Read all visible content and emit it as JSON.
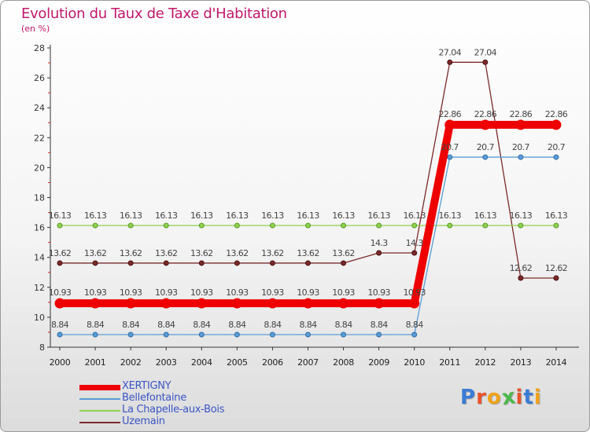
{
  "chart_data": {
    "type": "line",
    "title": "Evolution du Taux de Taxe d'Habitation",
    "subtitle": "(en %)",
    "x": [
      "2000",
      "2001",
      "2002",
      "2003",
      "2004",
      "2005",
      "2006",
      "2007",
      "2008",
      "2009",
      "2010",
      "2011",
      "2012",
      "2013",
      "2014"
    ],
    "ylim": [
      8,
      28
    ],
    "yticks": [
      8,
      10,
      12,
      14,
      16,
      18,
      20,
      22,
      24,
      26,
      28
    ],
    "grid": false,
    "legend_position": "bottom-left",
    "series": [
      {
        "name": "XERTIGNY",
        "color": "#ee0000",
        "values": [
          10.93,
          10.93,
          10.93,
          10.93,
          10.93,
          10.93,
          10.93,
          10.93,
          10.93,
          10.93,
          10.93,
          22.86,
          22.86,
          22.86,
          22.86
        ],
        "labels": [
          "10.93",
          "10.93",
          "10.93",
          "10.93",
          "10.93",
          "10.93",
          "10.93",
          "10.93",
          "10.93",
          "10.93",
          "10.93",
          "22.86",
          "22.86",
          "22.86",
          "22.86"
        ]
      },
      {
        "name": "Bellefontaine",
        "color": "#5b9bd5",
        "values": [
          8.84,
          8.84,
          8.84,
          8.84,
          8.84,
          8.84,
          8.84,
          8.84,
          8.84,
          8.84,
          8.84,
          20.7,
          20.7,
          20.7,
          20.7
        ],
        "labels": [
          "8.84",
          "8.84",
          "8.84",
          "8.84",
          "8.84",
          "8.84",
          "8.84",
          "8.84",
          "8.84",
          "8.84",
          "8.84",
          "20.7",
          "20.7",
          "20.7",
          "20.7"
        ]
      },
      {
        "name": "La Chapelle-aux-Bois",
        "color": "#8fd14f",
        "values": [
          16.13,
          16.13,
          16.13,
          16.13,
          16.13,
          16.13,
          16.13,
          16.13,
          16.13,
          16.13,
          16.13,
          16.13,
          16.13,
          16.13,
          16.13
        ],
        "labels": [
          "16.13",
          "16.13",
          "16.13",
          "16.13",
          "16.13",
          "16.13",
          "16.13",
          "16.13",
          "16.13",
          "16.13",
          "16.13",
          "16.13",
          "16.13",
          "16.13",
          "16.13"
        ]
      },
      {
        "name": "Uzemain",
        "color": "#7a2a2a",
        "values": [
          13.62,
          13.62,
          13.62,
          13.62,
          13.62,
          13.62,
          13.62,
          13.62,
          13.62,
          14.3,
          14.3,
          27.04,
          27.04,
          12.62,
          12.62
        ],
        "labels": [
          "13.62",
          "13.62",
          "13.62",
          "13.62",
          "13.62",
          "13.62",
          "13.62",
          "13.62",
          "13.62",
          "14.3",
          "14.3",
          "27.04",
          "27.04",
          "12.62",
          "12.62"
        ]
      }
    ]
  },
  "logo": {
    "text": "Proxiti"
  }
}
